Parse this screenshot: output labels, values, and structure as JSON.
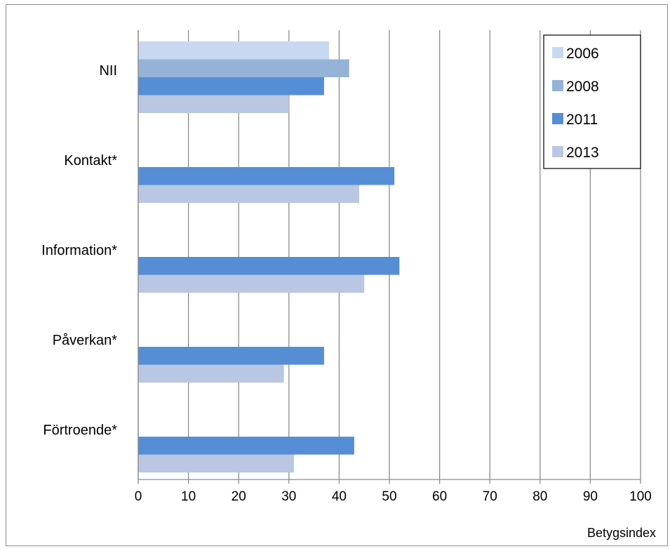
{
  "chart_data": {
    "type": "bar",
    "orientation": "horizontal",
    "title": "",
    "xlabel": "Betygsindex",
    "ylabel": "",
    "xlim": [
      0,
      100
    ],
    "xticks": [
      0,
      10,
      20,
      30,
      40,
      50,
      60,
      70,
      80,
      90,
      100
    ],
    "grid": "vertical",
    "legend_position": "top-right",
    "categories": [
      "NII",
      "Kontakt*",
      "Information*",
      "Påverkan*",
      "Förtroende*"
    ],
    "series": [
      {
        "name": "2006",
        "color": "#c6d9f1",
        "values": [
          38,
          null,
          null,
          null,
          null
        ]
      },
      {
        "name": "2008",
        "color": "#95b3d7",
        "values": [
          42,
          null,
          null,
          null,
          null
        ]
      },
      {
        "name": "2011",
        "color": "#558ed5",
        "values": [
          37,
          51,
          52,
          37,
          43
        ]
      },
      {
        "name": "2013",
        "color": "#b9c7e2",
        "values": [
          30,
          44,
          45,
          29,
          31
        ]
      }
    ]
  }
}
